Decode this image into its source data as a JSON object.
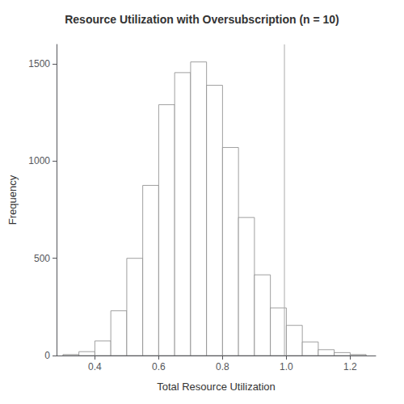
{
  "chart_data": {
    "type": "histogram",
    "title": "Resource Utilization with Oversubscription (n = 10)",
    "xlabel": "Total Resource Utilization",
    "ylabel": "Frequency",
    "bins": [
      0.3,
      0.35,
      0.4,
      0.45,
      0.5,
      0.55,
      0.6,
      0.65,
      0.7,
      0.75,
      0.8,
      0.85,
      0.9,
      0.95,
      1.0,
      1.05,
      1.1,
      1.15,
      1.2,
      1.25
    ],
    "values": [
      5,
      20,
      75,
      230,
      500,
      875,
      1290,
      1455,
      1510,
      1390,
      1070,
      710,
      415,
      245,
      155,
      70,
      30,
      15,
      5
    ],
    "color": "white",
    "vline": {
      "x": 0.994,
      "color": "#aaaaaa"
    },
    "xlim": [
      0.28,
      1.28
    ],
    "xticks": [
      0.4,
      0.6,
      0.8,
      {
        "value": 1.0,
        "label": "1.0"
      },
      1.2
    ],
    "ylim": [
      0,
      1600
    ],
    "yticks": [
      0,
      500,
      1000,
      1500
    ],
    "grid": false
  }
}
